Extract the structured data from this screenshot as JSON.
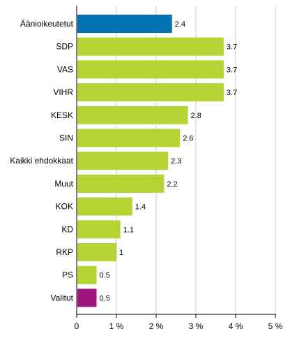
{
  "chart_data": {
    "type": "bar",
    "orientation": "horizontal",
    "categories": [
      "Äänioikeutetut",
      "SDP",
      "VAS",
      "VIHR",
      "KESK",
      "SIN",
      "Kaikki ehdokkaat",
      "Muut",
      "KOK",
      "KD",
      "RKP",
      "PS",
      "Valitut"
    ],
    "values": [
      2.4,
      3.7,
      3.7,
      3.7,
      2.8,
      2.6,
      2.3,
      2.2,
      1.4,
      1.1,
      1.0,
      0.5,
      0.5
    ],
    "value_labels": [
      "2.4",
      "3.7",
      "3.7",
      "3.7",
      "2.8",
      "2.6",
      "2.3",
      "2.2",
      "1.4",
      "1.1",
      "1",
      "0.5",
      "0.5"
    ],
    "bar_colors": [
      "#0073b0",
      "#b4d334",
      "#b4d334",
      "#b4d334",
      "#b4d334",
      "#b4d334",
      "#b4d334",
      "#b4d334",
      "#b4d334",
      "#b4d334",
      "#b4d334",
      "#b4d334",
      "#a0147d"
    ],
    "x_ticks": [
      "0",
      "1 %",
      "2 %",
      "3 %",
      "4 %",
      "5 %"
    ],
    "xlim": [
      0,
      5
    ],
    "grid": "vertical",
    "legend": "none"
  }
}
